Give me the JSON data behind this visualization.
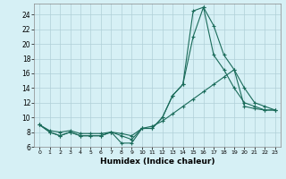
{
  "xlabel": "Humidex (Indice chaleur)",
  "bg_color": "#d6f0f5",
  "grid_color": "#b0d0d8",
  "line_color": "#1a6b5a",
  "xlim": [
    -0.5,
    23.5
  ],
  "ylim": [
    6,
    25.5
  ],
  "xticks": [
    0,
    1,
    2,
    3,
    4,
    5,
    6,
    7,
    8,
    9,
    10,
    11,
    12,
    13,
    14,
    15,
    16,
    17,
    18,
    19,
    20,
    21,
    22,
    23
  ],
  "yticks": [
    6,
    8,
    10,
    12,
    14,
    16,
    18,
    20,
    22,
    24
  ],
  "line1_x": [
    0,
    1,
    2,
    3,
    4,
    5,
    6,
    7,
    8,
    9,
    10,
    11,
    12,
    13,
    14,
    15,
    16,
    17,
    18,
    19,
    20,
    21,
    22,
    23
  ],
  "line1_y": [
    9.0,
    8.0,
    7.5,
    8.0,
    7.5,
    7.5,
    7.5,
    8.0,
    6.5,
    6.5,
    8.5,
    8.5,
    10.0,
    13.0,
    14.5,
    24.5,
    25.0,
    22.5,
    18.5,
    16.5,
    14.0,
    12.0,
    11.5,
    11.0
  ],
  "line2_x": [
    0,
    1,
    2,
    3,
    4,
    5,
    6,
    7,
    8,
    9,
    10,
    11,
    12,
    13,
    14,
    15,
    16,
    17,
    18,
    19,
    20,
    21,
    22,
    23
  ],
  "line2_y": [
    9.0,
    8.0,
    7.5,
    8.0,
    7.5,
    7.5,
    7.5,
    8.0,
    7.5,
    7.0,
    8.5,
    8.5,
    10.0,
    13.0,
    14.5,
    21.0,
    25.0,
    18.5,
    16.5,
    14.0,
    12.0,
    11.5,
    11.0,
    11.0
  ],
  "line3_x": [
    0,
    1,
    2,
    3,
    4,
    5,
    6,
    7,
    8,
    9,
    10,
    11,
    12,
    13,
    14,
    15,
    16,
    17,
    18,
    19,
    20,
    21,
    22,
    23
  ],
  "line3_y": [
    9.0,
    8.2,
    8.0,
    8.2,
    7.8,
    7.8,
    7.8,
    8.0,
    7.8,
    7.5,
    8.5,
    8.8,
    9.5,
    10.5,
    11.5,
    12.5,
    13.5,
    14.5,
    15.5,
    16.5,
    11.5,
    11.2,
    11.0,
    11.0
  ]
}
